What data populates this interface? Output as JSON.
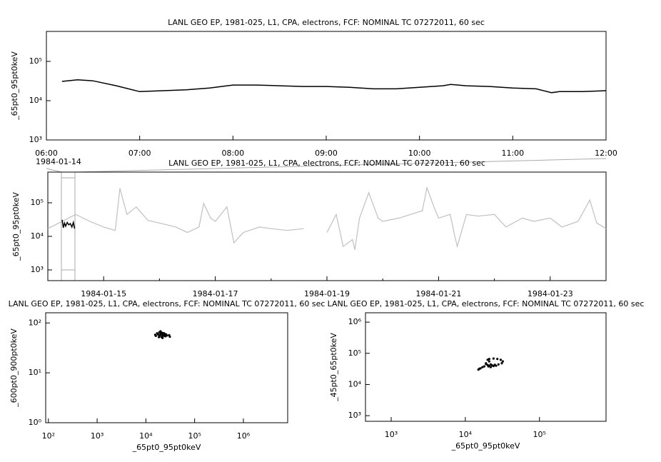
{
  "chart_data": [
    {
      "type": "line",
      "title": "LANL GEO EP, 1981-025, L1, CPA, electrons, FCF: NOMINAL TC 07272011, 60 sec",
      "ylabel": "_65pt0_95pt0keV",
      "ylog": true,
      "ylim": [
        1000,
        580000
      ],
      "yticks": [
        {
          "value": 1000,
          "label": "10³"
        },
        {
          "value": 10000,
          "label": "10⁴"
        },
        {
          "value": 100000,
          "label": "10⁵"
        }
      ],
      "xlim": [
        "06:00",
        "12:00"
      ],
      "xticks": [
        "06:00",
        "07:00",
        "08:00",
        "09:00",
        "10:00",
        "11:00",
        "12:00"
      ],
      "date_label": "1984-01-14",
      "series": [
        {
          "color": "#000000",
          "x": [
            "06:10",
            "06:20",
            "06:30",
            "06:45",
            "07:00",
            "07:15",
            "07:30",
            "07:45",
            "08:00",
            "08:15",
            "08:30",
            "08:45",
            "09:00",
            "09:15",
            "09:30",
            "09:45",
            "10:00",
            "10:15",
            "10:20",
            "10:30",
            "10:45",
            "11:00",
            "11:15",
            "11:25",
            "11:30",
            "11:45",
            "12:00"
          ],
          "values": [
            31000,
            34000,
            32000,
            24000,
            17000,
            18000,
            19000,
            21000,
            25000,
            25000,
            24000,
            23000,
            23000,
            22000,
            20000,
            20000,
            22000,
            24000,
            26000,
            24000,
            23000,
            21000,
            20000,
            16000,
            17000,
            17000,
            18000
          ]
        }
      ]
    },
    {
      "type": "line",
      "title": "LANL GEO EP, 1981-025, L1, CPA, electrons, FCF: NOMINAL TC 07272011, 60 sec",
      "ylabel": "_65pt0_95pt0keV",
      "ylog": true,
      "ylim": [
        480,
        820000
      ],
      "yticks": [
        {
          "value": 1000,
          "label": "10³"
        },
        {
          "value": 10000,
          "label": "10⁴"
        },
        {
          "value": 100000,
          "label": "10⁵"
        }
      ],
      "xlim": [
        "1984-01-14",
        "1984-01-24"
      ],
      "xticks": [
        "1984-01-15",
        "1984-01-17",
        "1984-01-19",
        "1984-01-21",
        "1984-01-23"
      ],
      "xminor": [
        "1984-01-16",
        "1984-01-18",
        "1984-01-20",
        "1984-01-22"
      ],
      "series": [
        {
          "color": "#c0c0c0",
          "x": [
            "1984-01-14 00:00",
            "1984-01-14 12:00",
            "1984-01-14 18:00",
            "1984-01-15 00:00",
            "1984-01-15 05:00",
            "1984-01-15 07:00",
            "1984-01-15 10:00",
            "1984-01-15 14:00",
            "1984-01-15 19:00",
            "1984-01-16 00:00",
            "1984-01-16 07:00",
            "1984-01-16 12:00",
            "1984-01-16 17:00",
            "1984-01-16 19:00",
            "1984-01-16 22:00",
            "1984-01-17 00:00",
            "1984-01-17 05:00",
            "1984-01-17 08:00",
            "1984-01-17 12:00",
            "1984-01-17 19:00",
            "1984-01-18 00:00",
            "1984-01-18 07:00",
            "1984-01-18 14:00",
            "1984-01-18 19:00",
            "1984-01-19 00:00",
            "1984-01-19 04:00",
            "1984-01-19 07:00",
            "1984-01-19 11:00",
            "1984-01-19 12:00",
            "1984-01-19 14:00",
            "1984-01-19 18:00",
            "1984-01-19 22:00",
            "1984-01-20 00:00",
            "1984-01-20 07:00",
            "1984-01-20 12:00",
            "1984-01-20 17:00",
            "1984-01-20 19:00",
            "1984-01-20 22:00",
            "1984-01-21 00:00",
            "1984-01-21 05:00",
            "1984-01-21 07:00",
            "1984-01-21 08:00",
            "1984-01-21 12:00",
            "1984-01-21 17:00",
            "1984-01-22 00:00",
            "1984-01-22 05:00",
            "1984-01-22 12:00",
            "1984-01-22 17:00",
            "1984-01-23 00:00",
            "1984-01-23 05:00",
            "1984-01-23 12:00",
            "1984-01-23 17:00",
            "1984-01-23 20:00",
            "1984-01-24 00:00"
          ],
          "values": [
            17000,
            45000,
            28000,
            19000,
            15000,
            270000,
            45000,
            75000,
            30000,
            25000,
            19000,
            13000,
            19000,
            95000,
            35000,
            28000,
            75000,
            6400,
            13000,
            19000,
            17000,
            15000,
            17000,
            null,
            13000,
            45000,
            5000,
            8000,
            4000,
            35000,
            200000,
            35000,
            28000,
            35000,
            45000,
            58000,
            280000,
            75000,
            35000,
            45000,
            10000,
            5000,
            45000,
            40000,
            45000,
            19000,
            35000,
            28000,
            35000,
            19000,
            28000,
            120000,
            25000,
            17000
          ]
        },
        {
          "color": "#000000",
          "x": [
            "1984-01-14 06:10",
            "1984-01-14 06:40",
            "1984-01-14 07:10",
            "1984-01-14 07:40",
            "1984-01-14 08:20",
            "1984-01-14 09:00",
            "1984-01-14 09:40",
            "1984-01-14 10:20",
            "1984-01-14 11:00",
            "1984-01-14 11:30"
          ],
          "values": [
            31000,
            18000,
            25000,
            20000,
            26000,
            22000,
            24000,
            19000,
            26000,
            17000
          ]
        }
      ]
    },
    {
      "type": "scatter",
      "title": "LANL GEO EP, 1981-025, L1, CPA, electrons, FCF: NOMINAL TC 07272011, 60 sec",
      "xlabel": "_65pt0_95pt0keV",
      "ylabel": "_600pt0_900pt0keV",
      "xlog": true,
      "ylog": true,
      "xlim": [
        88,
        8100000
      ],
      "ylim": [
        1,
        160
      ],
      "xticks": [
        {
          "value": 100,
          "label": "10²"
        },
        {
          "value": 1000,
          "label": "10³"
        },
        {
          "value": 10000,
          "label": "10⁴"
        },
        {
          "value": 100000,
          "label": "10⁵"
        },
        {
          "value": 1000000,
          "label": "10⁶"
        }
      ],
      "yticks": [
        {
          "value": 1,
          "label": "10⁰"
        },
        {
          "value": 10,
          "label": "10¹"
        },
        {
          "value": 100,
          "label": "10²"
        }
      ],
      "color": "#000000",
      "x": [
        16000,
        17000,
        18000,
        19000,
        20000,
        21000,
        22000,
        23000,
        24000,
        25000,
        26000,
        18500,
        19500,
        20500,
        21500,
        22500,
        23500,
        24500,
        27000,
        30000,
        31000,
        17500,
        20000,
        22000,
        15500
      ],
      "values": [
        55,
        62,
        58,
        65,
        60,
        52,
        63,
        57,
        61,
        54,
        59,
        52,
        56,
        64,
        58,
        55,
        62,
        58,
        56,
        57,
        53,
        60,
        68,
        50,
        58
      ]
    },
    {
      "type": "scatter",
      "title": "LANL GEO EP, 1981-025, L1, CPA, electrons, FCF: NOMINAL TC 07272011, 60 sec",
      "xlabel": "_65pt0_95pt0keV",
      "ylabel": "_45pt0_65pt0keV",
      "xlog": true,
      "ylog": true,
      "xlim": [
        450,
        790000
      ],
      "ylim": [
        660,
        2000000
      ],
      "xticks": [
        {
          "value": 1000,
          "label": "10³"
        },
        {
          "value": 10000,
          "label": "10⁴"
        },
        {
          "value": 100000,
          "label": "10⁵"
        }
      ],
      "yticks": [
        {
          "value": 1000,
          "label": "10³"
        },
        {
          "value": 10000,
          "label": "10⁴"
        },
        {
          "value": 100000,
          "label": "10⁵"
        },
        {
          "value": 1000000,
          "label": "10⁶"
        }
      ],
      "color": "#000000",
      "x": [
        15000,
        15500,
        16000,
        18000,
        19000,
        20000,
        21000,
        22000,
        23000,
        24000,
        25000,
        21000,
        20000,
        21000,
        24000,
        27000,
        30000,
        32000,
        31000,
        28000,
        26000,
        19000,
        20500,
        22000,
        17000
      ],
      "values": [
        30000,
        32000,
        33000,
        38000,
        45000,
        42000,
        40000,
        44000,
        41000,
        39000,
        43000,
        55000,
        62000,
        66000,
        68000,
        66000,
        62000,
        55000,
        48000,
        44000,
        40000,
        48000,
        38000,
        36000,
        36000
      ]
    }
  ]
}
